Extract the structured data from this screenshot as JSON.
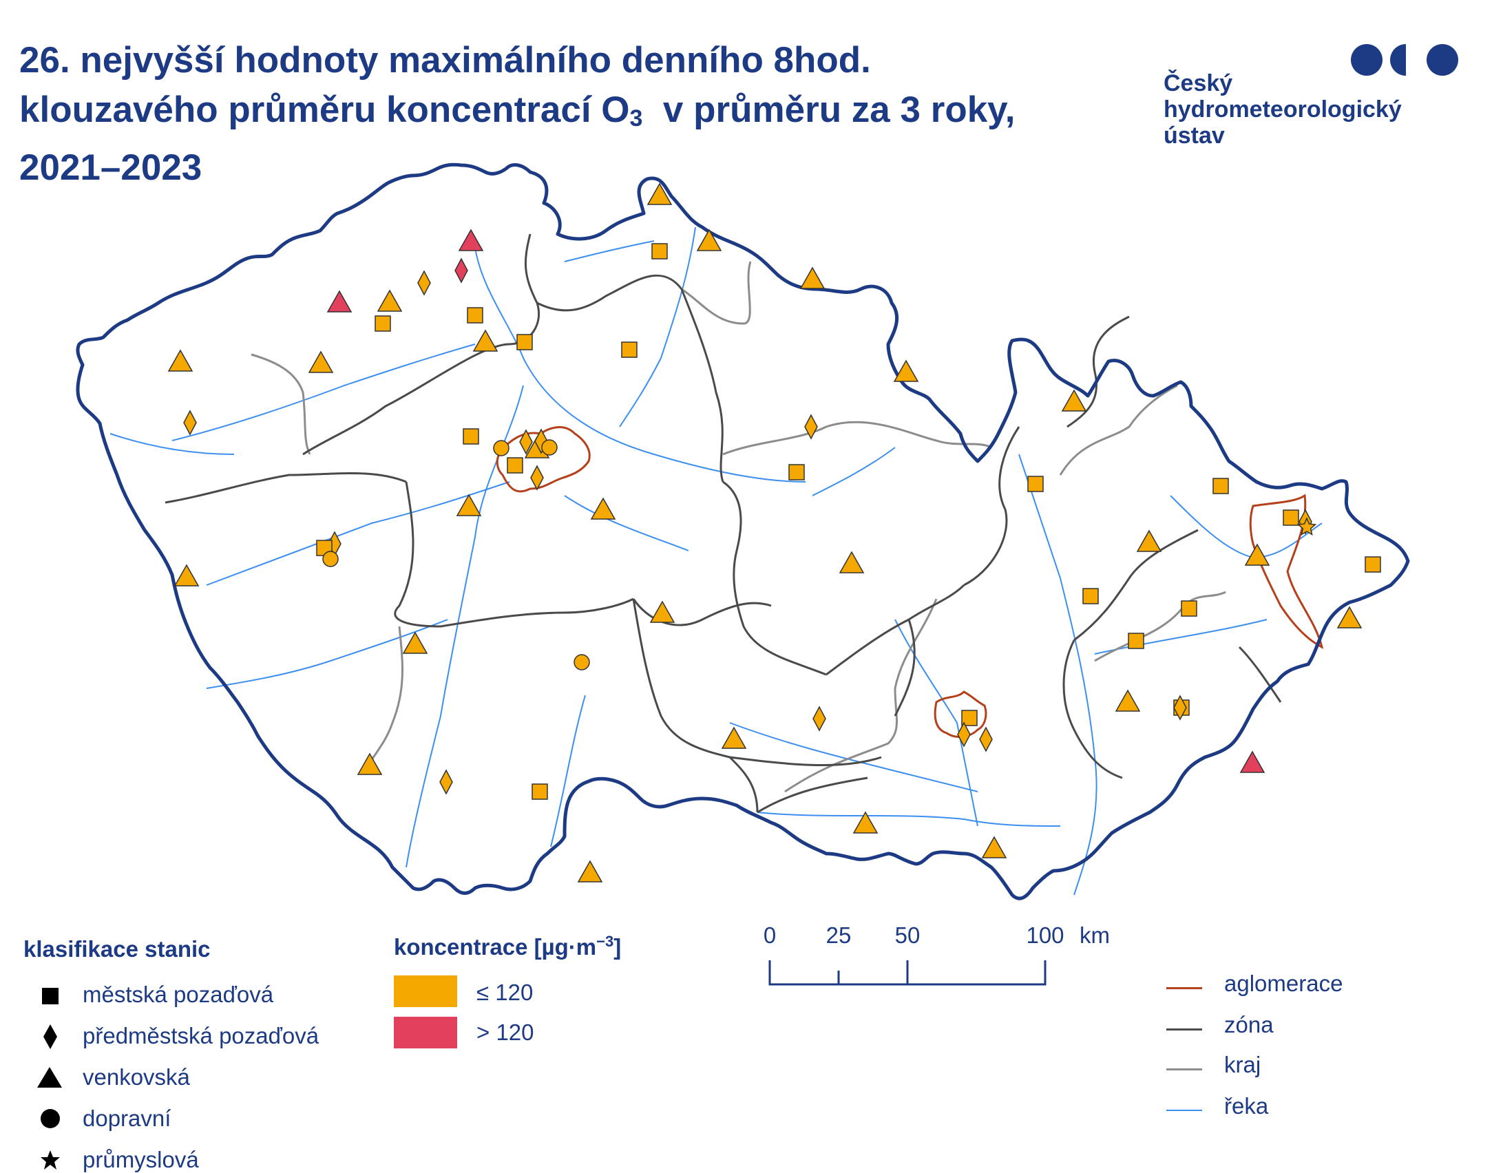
{
  "title": {
    "line1": "26. nejvyšší hodnoty maximálního denního 8hod.",
    "line2_a": "klouzavého průměru koncentrací O",
    "line2_sub": "3",
    "line2_b": "  v průměru za 3 roky,",
    "line3": "2021–2023"
  },
  "logo": {
    "line1": "Český",
    "line2": "hydrometeorologický",
    "line3": "ústav",
    "icon": "chmi-logo-dots"
  },
  "colors": {
    "low": "#f5a800",
    "high": "#e2405c",
    "border": "#1d3a84",
    "aglomerace": "#b5401c",
    "zona": "#4a4a4a",
    "kraj": "#8c8c8c",
    "reka": "#3c8ff0"
  },
  "station_legend": {
    "title": "klasifikace stanic",
    "items": [
      {
        "symbol": "square",
        "label": "městská pozaďová"
      },
      {
        "symbol": "diamond",
        "label": "předměstská pozaďová"
      },
      {
        "symbol": "triangle",
        "label": "venkovská"
      },
      {
        "symbol": "circle",
        "label": "dopravní"
      },
      {
        "symbol": "star",
        "label": "průmyslová"
      }
    ]
  },
  "concentration_legend": {
    "title": "koncentrace [µg·m",
    "title_sup": "−3",
    "title_end": "]",
    "items": [
      {
        "label": "≤ 120",
        "class": "low"
      },
      {
        "label": "> 120",
        "class": "high"
      }
    ]
  },
  "scale_bar": {
    "ticks": [
      "0",
      "25",
      "50",
      "100"
    ],
    "unit": "km"
  },
  "line_legend": {
    "items": [
      {
        "key": "aglomerace",
        "label": "aglomerace"
      },
      {
        "key": "zona",
        "label": "zóna"
      },
      {
        "key": "kraj",
        "label": "kraj"
      },
      {
        "key": "reka",
        "label": "řeka"
      }
    ]
  }
}
